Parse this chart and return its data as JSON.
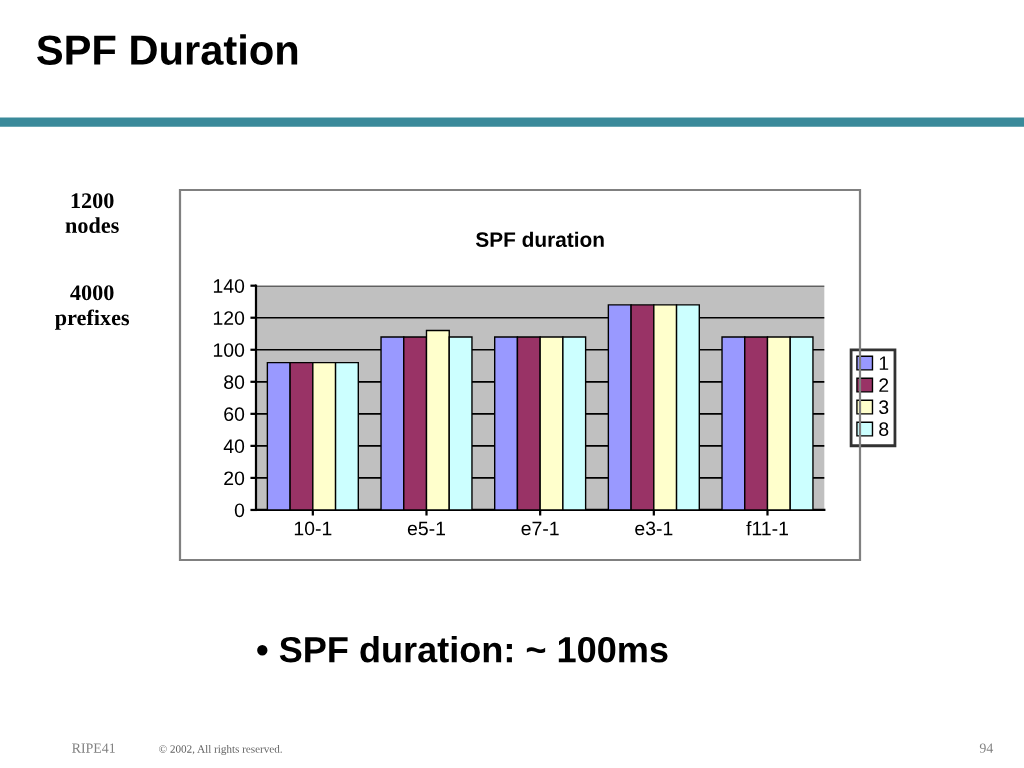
{
  "chart_data": {
    "type": "bar",
    "title": "SPF Duration",
    "subtitle": "SPF duration",
    "categories": [
      "10-1",
      "e5-1",
      "e7-1",
      "e3-1",
      "f11-1"
    ],
    "series": [
      {
        "name": "1",
        "color": "#9999ff",
        "values": [
          92,
          108,
          108,
          128,
          108
        ]
      },
      {
        "name": "2",
        "color": "#993366",
        "values": [
          92,
          108,
          108,
          128,
          108
        ]
      },
      {
        "name": "3",
        "color": "#ffffcc",
        "values": [
          92,
          112,
          108,
          128,
          108
        ]
      },
      {
        "name": "8",
        "color": "#ccffff",
        "values": [
          92,
          108,
          108,
          128,
          108
        ]
      }
    ],
    "ylim": [
      0,
      140
    ],
    "yticks": [
      0,
      20,
      40,
      60,
      80,
      100,
      120,
      140
    ],
    "grid": "y",
    "legend": "right",
    "annotations": [
      "1200\nnodes",
      "4000\nprefixes",
      "• SPF duration: ~ 100ms",
      "RIPE41",
      "© 2002, All rights reserved.",
      "94"
    ]
  }
}
